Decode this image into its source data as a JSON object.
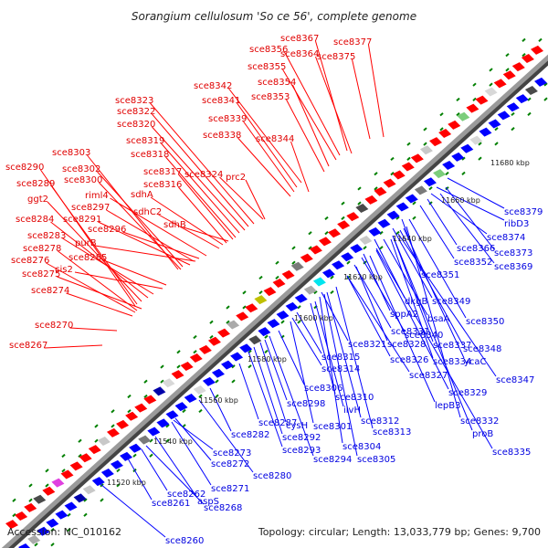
{
  "title": "Sorangium cellulosum 'So ce 56', complete genome",
  "accession": "Accession: NC_010162",
  "topology": "Topology: circular; Length: 13,033,779 bp; Genes: 9,700",
  "colors": {
    "forward": "#ff0000",
    "reverse": "#0000ff",
    "backbone": "#808080",
    "tick": "#008000"
  },
  "scale_labels": [
    "11520 kbp",
    "11540 kbp",
    "11560 kbp",
    "11580 kbp",
    "11600 kbp",
    "11620 kbp",
    "11640 kbp",
    "11660 kbp",
    "11680 kbp"
  ],
  "forward_genes": [
    "sce8377",
    "sce8367",
    "sce8375",
    "sce8356",
    "sce8364",
    "sce8355",
    "sce8354",
    "sce8342",
    "sce8353",
    "sce8341",
    "sce8323",
    "sce8339",
    "sce8322",
    "sce8320",
    "sce8338",
    "sce8344",
    "sce8319",
    "sce8303",
    "sce8318",
    "sce8290",
    "sce8302",
    "sce8317",
    "sce8324",
    "sce8300",
    "sce8316",
    "prc2",
    "sce8289",
    "riml4",
    "sdhA",
    "ggt2",
    "sce8297",
    "sdhC2",
    "sce8284",
    "sce8291",
    "sdhB",
    "sce8296",
    "sce8283",
    "purB",
    "sce8278",
    "sce8276",
    "sce8285",
    "sce8275",
    "cis2",
    "sce8274",
    "sce8270",
    "sce8267"
  ],
  "reverse_genes": [
    "sce8379",
    "ribD3",
    "sce8374",
    "sce8366",
    "sce8373",
    "sce8352",
    "sce8369",
    "sce8351",
    "dkgB",
    "sce8349",
    "sppA2",
    "bsaA",
    "sce8350",
    "sce8340",
    "sce8331",
    "sce8348",
    "sce8321",
    "sce8328",
    "sce8337",
    "sce8315",
    "sce8326",
    "sce8334",
    "ycaC",
    "sce8314",
    "sce8327",
    "sce8347",
    "sce8306",
    "sce8310",
    "sce8329",
    "sce8298",
    "ilvH",
    "lepB3",
    "sce8312",
    "sce8332",
    "sce8287",
    "cysH",
    "sce8301",
    "sce8313",
    "sce8282",
    "sce8292",
    "proB",
    "sce8304",
    "sce8293",
    "sce8294",
    "sce8305",
    "sce8335",
    "sce8273",
    "sce8272",
    "sce8280",
    "sce8271",
    "sce8262",
    "aspS",
    "sce8261",
    "sce8268",
    "sce8260"
  ]
}
